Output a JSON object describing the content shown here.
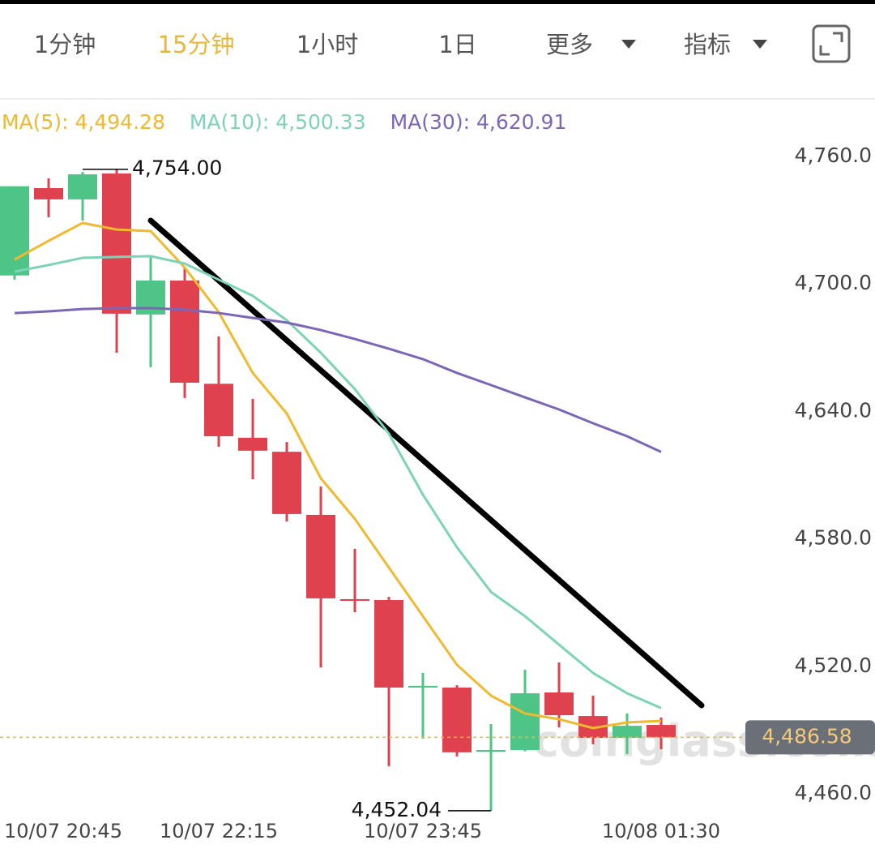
{
  "tabs": [
    {
      "label": "1分钟"
    },
    {
      "label": "15分钟",
      "active": true
    },
    {
      "label": "1小时"
    },
    {
      "label": "1日"
    },
    {
      "label": "更多"
    },
    {
      "label": "指标"
    }
  ],
  "watermark": "coinglass.com",
  "chart_data": {
    "type": "candlestick",
    "categories": [
      "10/07 20:45",
      null,
      null,
      null,
      null,
      null,
      "10/07 22:15",
      null,
      null,
      null,
      null,
      null,
      "10/07 23:45",
      null,
      null,
      null,
      null,
      null,
      null,
      "10/08 01:30"
    ],
    "open": [
      4704,
      4745.1,
      4739.8,
      4752,
      4685.6,
      4701.6,
      4653,
      4627.6,
      4621,
      4591.3,
      4551.6,
      4551.2,
      4510,
      4510,
      4479.8,
      4480.6,
      4507.7,
      4496.6,
      4486.3,
      4492.4
    ],
    "high": [
      4746,
      4749.7,
      4752.7,
      4754,
      4713,
      4707.7,
      4675.3,
      4645.9,
      4625.6,
      4604.7,
      4575.3,
      4552.7,
      4516.9,
      4511.1,
      4492.8,
      4518.4,
      4521.8,
      4506.2,
      4497.8,
      4495.9
    ],
    "low": [
      4702,
      4731.4,
      4729.8,
      4667.6,
      4660.8,
      4646.3,
      4623.4,
      4608.1,
      4588.2,
      4519.5,
      4545.5,
      4473,
      4486,
      4477.6,
      4452.04,
      4480,
      4491.3,
      4483.3,
      4478.7,
      4481
    ],
    "close": [
      4746,
      4739.8,
      4751.6,
      4686,
      4701.6,
      4653.5,
      4628.3,
      4621.5,
      4591.7,
      4552,
      4551,
      4510,
      4510.8,
      4479.5,
      4480.6,
      4507.3,
      4497,
      4486.3,
      4492,
      4486.58
    ],
    "high_labels": [
      null,
      null,
      null,
      "4,754.00",
      null,
      null,
      null,
      null,
      null,
      null,
      null,
      null,
      null,
      null,
      null,
      null,
      null,
      null,
      null,
      null
    ],
    "low_labels": [
      null,
      null,
      null,
      null,
      null,
      null,
      null,
      null,
      null,
      null,
      null,
      null,
      null,
      null,
      "4,452.04",
      null,
      null,
      null,
      null,
      null
    ],
    "up_color": "#4fc487",
    "down_color": "#e0414f",
    "series": [
      {
        "name": "MA(5):",
        "color": "#f0b92e",
        "values": [
          4711.5,
          4720.3,
          4728.7,
          4725.6,
          4724.9,
          4707.7,
          4686.7,
          4658.1,
          4639,
          4608.5,
          4589.4,
          4566.5,
          4543.6,
          4520.7,
          4506.2,
          4497.8,
          4495.1,
          4490.9,
          4493.6,
          4494.28
        ],
        "value_labels": [
          null,
          null,
          null,
          null,
          null,
          null,
          null,
          null,
          null,
          null,
          null,
          null,
          null,
          null,
          null,
          null,
          null,
          null,
          null,
          "4,494.28"
        ]
      },
      {
        "name": "MA(10):",
        "color": "#7dd3b8",
        "values": [
          4705.8,
          4708.9,
          4712.3,
          4712.7,
          4713.1,
          4709.6,
          4702,
          4694.4,
          4682.9,
          4667.6,
          4650.5,
          4629.5,
          4600.8,
          4576,
          4555,
          4543.6,
          4530.2,
          4516.9,
          4507.3,
          4500.33
        ],
        "value_labels": [
          null,
          null,
          null,
          null,
          null,
          null,
          null,
          null,
          null,
          null,
          null,
          null,
          null,
          null,
          null,
          null,
          null,
          null,
          null,
          "4,500.33"
        ]
      },
      {
        "name": "MA(30):",
        "color": "#7b66b8",
        "values": [
          4686.3,
          4687.1,
          4688.2,
          4688.6,
          4688.6,
          4687.9,
          4686.3,
          4684,
          4681.8,
          4678.3,
          4674.1,
          4669.5,
          4664.6,
          4658.1,
          4652.4,
          4646.6,
          4640.9,
          4634.4,
          4628.3,
          4620.91
        ],
        "value_labels": [
          null,
          null,
          null,
          null,
          null,
          null,
          null,
          null,
          null,
          null,
          null,
          null,
          null,
          null,
          null,
          null,
          null,
          null,
          null,
          "4,620.91"
        ]
      }
    ],
    "last_price": {
      "value": 4486.58,
      "label": "4,486.58"
    },
    "ylim": [
      4448,
      4769
    ],
    "yticks": [
      {
        "value": 4760,
        "label": "4,760.0"
      },
      {
        "value": 4700,
        "label": "4,700.0"
      },
      {
        "value": 4640,
        "label": "4,640.0"
      },
      {
        "value": 4580,
        "label": "4,580.0"
      },
      {
        "value": 4520,
        "label": "4,520.0"
      },
      {
        "value": 4460,
        "label": "4,460.0"
      }
    ]
  }
}
